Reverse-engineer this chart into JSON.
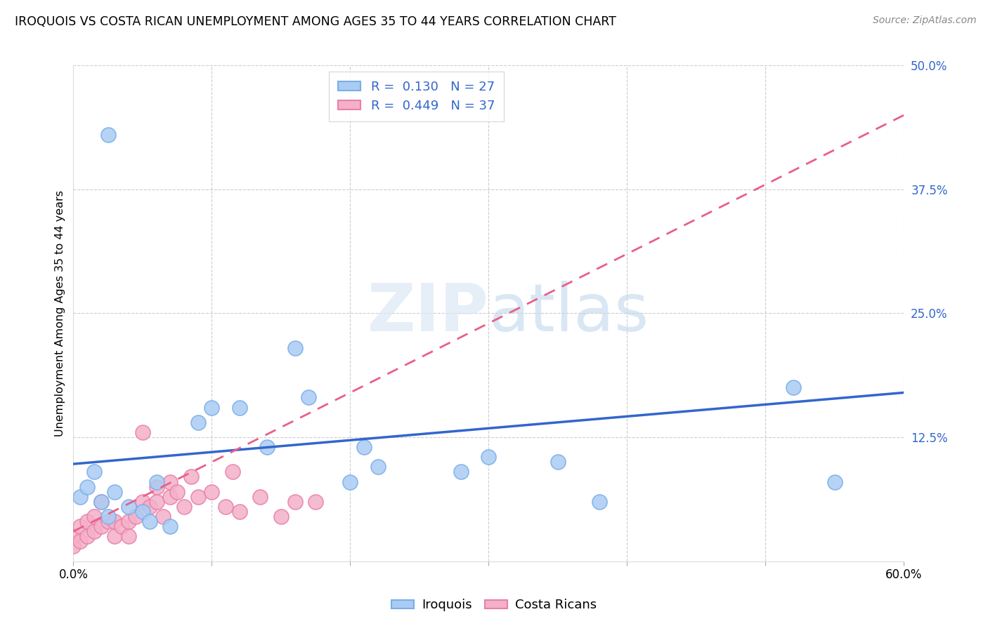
{
  "title": "IROQUOIS VS COSTA RICAN UNEMPLOYMENT AMONG AGES 35 TO 44 YEARS CORRELATION CHART",
  "source": "Source: ZipAtlas.com",
  "ylabel": "Unemployment Among Ages 35 to 44 years",
  "xlim": [
    0.0,
    0.6
  ],
  "ylim": [
    0.0,
    0.5
  ],
  "xticks": [
    0.0,
    0.1,
    0.2,
    0.3,
    0.4,
    0.5,
    0.6
  ],
  "xticklabels": [
    "0.0%",
    "",
    "",
    "",
    "",
    "",
    "60.0%"
  ],
  "yticks": [
    0.0,
    0.125,
    0.25,
    0.375,
    0.5
  ],
  "yticklabels": [
    "",
    "12.5%",
    "25.0%",
    "37.5%",
    "50.0%"
  ],
  "iroquois_R": 0.13,
  "iroquois_N": 27,
  "costa_rican_R": 0.449,
  "costa_rican_N": 37,
  "iroquois_color": "#aaccf4",
  "iroquois_edge_color": "#7aaee8",
  "costa_rican_color": "#f4b0c8",
  "costa_rican_edge_color": "#e880a8",
  "iroquois_line_color": "#3366cc",
  "costa_rican_line_color": "#e8608a",
  "legend_text_color": "#3366cc",
  "iroquois_scatter_x": [
    0.025,
    0.16,
    0.3,
    0.005,
    0.01,
    0.015,
    0.02,
    0.025,
    0.03,
    0.04,
    0.05,
    0.055,
    0.06,
    0.07,
    0.09,
    0.1,
    0.12,
    0.14,
    0.17,
    0.2,
    0.21,
    0.22,
    0.28,
    0.35,
    0.38,
    0.52,
    0.55
  ],
  "iroquois_scatter_y": [
    0.43,
    0.215,
    0.105,
    0.065,
    0.075,
    0.09,
    0.06,
    0.045,
    0.07,
    0.055,
    0.05,
    0.04,
    0.08,
    0.035,
    0.14,
    0.155,
    0.155,
    0.115,
    0.165,
    0.08,
    0.115,
    0.095,
    0.09,
    0.1,
    0.06,
    0.175,
    0.08
  ],
  "costa_rican_scatter_x": [
    0.0,
    0.0,
    0.005,
    0.005,
    0.01,
    0.01,
    0.015,
    0.015,
    0.02,
    0.02,
    0.025,
    0.03,
    0.03,
    0.035,
    0.04,
    0.04,
    0.045,
    0.05,
    0.05,
    0.055,
    0.06,
    0.06,
    0.065,
    0.07,
    0.07,
    0.075,
    0.08,
    0.085,
    0.09,
    0.1,
    0.11,
    0.115,
    0.12,
    0.135,
    0.15,
    0.16,
    0.175
  ],
  "costa_rican_scatter_y": [
    0.015,
    0.025,
    0.02,
    0.035,
    0.025,
    0.04,
    0.03,
    0.045,
    0.035,
    0.06,
    0.04,
    0.025,
    0.04,
    0.035,
    0.025,
    0.04,
    0.045,
    0.13,
    0.06,
    0.055,
    0.06,
    0.075,
    0.045,
    0.065,
    0.08,
    0.07,
    0.055,
    0.085,
    0.065,
    0.07,
    0.055,
    0.09,
    0.05,
    0.065,
    0.045,
    0.06,
    0.06
  ],
  "background_color": "#ffffff",
  "grid_color": "#cccccc"
}
